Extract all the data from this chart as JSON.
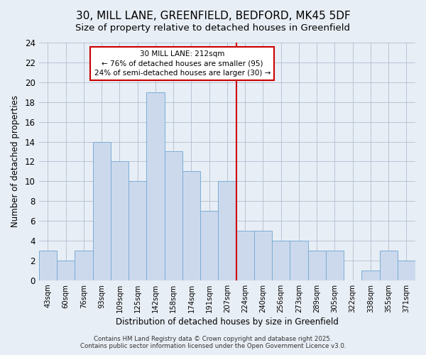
{
  "title": "30, MILL LANE, GREENFIELD, BEDFORD, MK45 5DF",
  "subtitle": "Size of property relative to detached houses in Greenfield",
  "xlabel": "Distribution of detached houses by size in Greenfield",
  "ylabel": "Number of detached properties",
  "categories": [
    "43sqm",
    "60sqm",
    "76sqm",
    "93sqm",
    "109sqm",
    "125sqm",
    "142sqm",
    "158sqm",
    "174sqm",
    "191sqm",
    "207sqm",
    "224sqm",
    "240sqm",
    "256sqm",
    "273sqm",
    "289sqm",
    "305sqm",
    "322sqm",
    "338sqm",
    "355sqm",
    "371sqm"
  ],
  "values": [
    3,
    2,
    3,
    14,
    12,
    10,
    19,
    13,
    11,
    7,
    10,
    5,
    5,
    4,
    4,
    3,
    3,
    0,
    1,
    3,
    2
  ],
  "bar_color": "#ccd9ed",
  "bar_edge_color": "#7aadd4",
  "highlight_bar_index": 10,
  "highlight_line_color": "#cc0000",
  "annotation_line1": "30 MILL LANE: 212sqm",
  "annotation_line2": "← 76% of detached houses are smaller (95)",
  "annotation_line3": "24% of semi-detached houses are larger (30) →",
  "annotation_box_color": "#ffffff",
  "annotation_box_edge": "#cc0000",
  "ylim": [
    0,
    24
  ],
  "yticks": [
    0,
    2,
    4,
    6,
    8,
    10,
    12,
    14,
    16,
    18,
    20,
    22,
    24
  ],
  "footer": "Contains HM Land Registry data © Crown copyright and database right 2025.\nContains public sector information licensed under the Open Government Licence v3.0.",
  "bg_color": "#e8eef5",
  "plot_bg_color": "#e8eef5",
  "grid_color": "#b0bdd0",
  "title_fontsize": 11,
  "subtitle_fontsize": 9.5
}
